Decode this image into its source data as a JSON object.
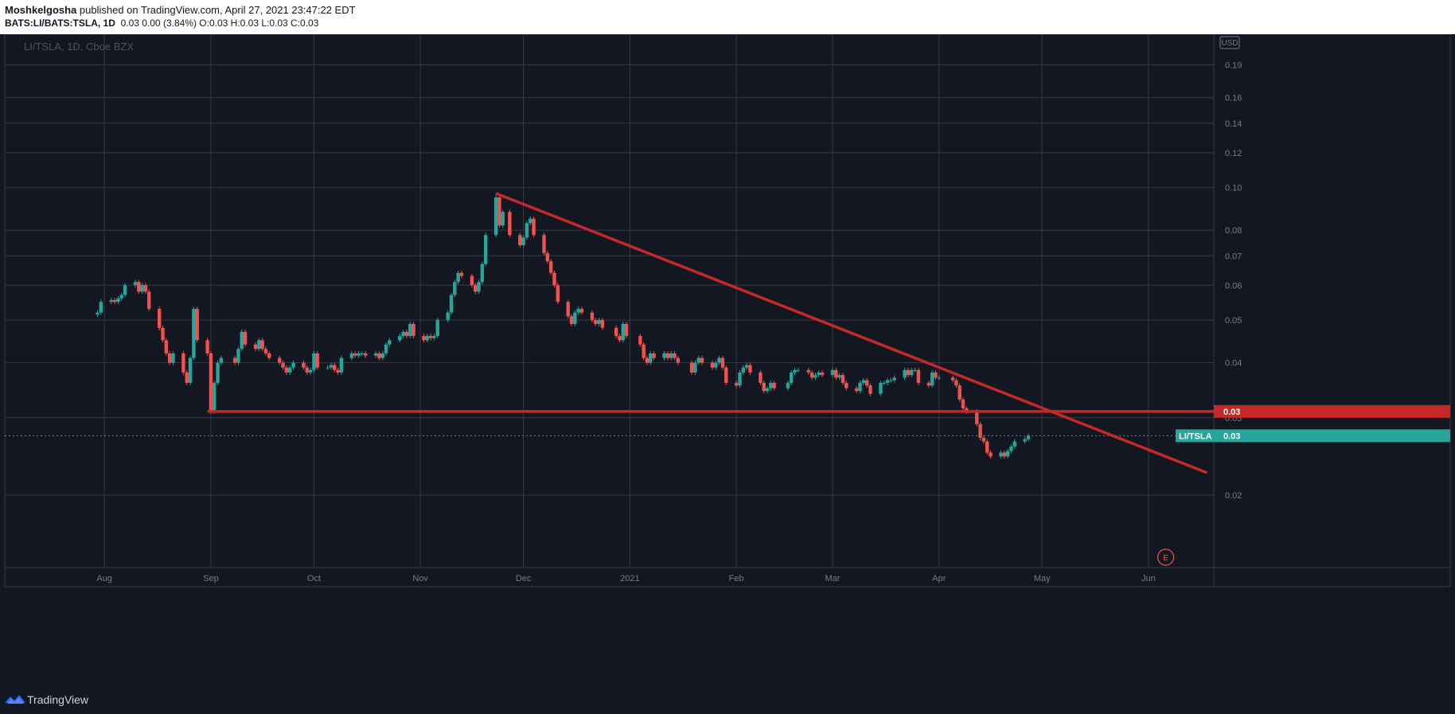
{
  "header": {
    "author": "Moshkelgosha",
    "published": " published on TradingView.com, April 27, 2021 23:47:22 EDT",
    "symbol_line": "BATS:LI/BATS:TSLA, 1D",
    "values_line": "0.03 0.00 (3.84%) O:0.03 H:0.03 L:0.03 C:0.03"
  },
  "chart_label": "LI/TSLA, 1D, Cboe BZX",
  "currency": "USD",
  "footer": {
    "brand": "TradingView"
  },
  "colors": {
    "background": "#131722",
    "up": "#26a69a",
    "down": "#ef5350",
    "trendline": "#c62828",
    "grid": "#363a45",
    "text": "#787b86"
  },
  "chart_data": {
    "type": "candlestick",
    "title": "LI/TSLA, 1D, Cboe BZX",
    "y_scale": "log",
    "ylim": [
      0.0137,
      0.223
    ],
    "xlim": [
      "2020-07-03",
      "2021-06-20"
    ],
    "y_ticks": [
      "0.19",
      "0.16",
      "0.14",
      "0.12",
      "0.10",
      "0.08",
      "0.07",
      "0.06",
      "0.05",
      "0.04",
      "0.03",
      "0.02"
    ],
    "x_ticks": [
      {
        "label": "Aug",
        "date": "2020-08-01"
      },
      {
        "label": "Sep",
        "date": "2020-09-01"
      },
      {
        "label": "Oct",
        "date": "2020-10-01"
      },
      {
        "label": "Nov",
        "date": "2020-11-01"
      },
      {
        "label": "Dec",
        "date": "2020-12-01"
      },
      {
        "label": "2021",
        "date": "2021-01-01"
      },
      {
        "label": "Feb",
        "date": "2021-02-01"
      },
      {
        "label": "Mar",
        "date": "2021-03-01"
      },
      {
        "label": "Apr",
        "date": "2021-04-01"
      },
      {
        "label": "May",
        "date": "2021-05-01"
      },
      {
        "label": "Jun",
        "date": "2021-06-01"
      }
    ],
    "close_series": [
      [
        "2020-07-30",
        0.052
      ],
      [
        "2020-07-31",
        0.055
      ],
      [
        "2020-08-03",
        0.0555
      ],
      [
        "2020-08-04",
        0.055
      ],
      [
        "2020-08-05",
        0.056
      ],
      [
        "2020-08-06",
        0.057
      ],
      [
        "2020-08-07",
        0.06
      ],
      [
        "2020-08-10",
        0.061
      ],
      [
        "2020-08-11",
        0.058
      ],
      [
        "2020-08-12",
        0.06
      ],
      [
        "2020-08-13",
        0.058
      ],
      [
        "2020-08-14",
        0.053
      ],
      [
        "2020-08-17",
        0.048
      ],
      [
        "2020-08-18",
        0.045
      ],
      [
        "2020-08-19",
        0.042
      ],
      [
        "2020-08-20",
        0.04
      ],
      [
        "2020-08-21",
        0.042
      ],
      [
        "2020-08-24",
        0.038
      ],
      [
        "2020-08-25",
        0.036
      ],
      [
        "2020-08-26",
        0.041
      ],
      [
        "2020-08-27",
        0.053
      ],
      [
        "2020-08-28",
        0.045
      ],
      [
        "2020-08-31",
        0.042
      ],
      [
        "2020-09-01",
        0.031
      ],
      [
        "2020-09-02",
        0.036
      ],
      [
        "2020-09-03",
        0.04
      ],
      [
        "2020-09-04",
        0.041
      ],
      [
        "2020-09-08",
        0.04
      ],
      [
        "2020-09-09",
        0.043
      ],
      [
        "2020-09-10",
        0.047
      ],
      [
        "2020-09-11",
        0.044
      ],
      [
        "2020-09-14",
        0.043
      ],
      [
        "2020-09-15",
        0.045
      ],
      [
        "2020-09-16",
        0.043
      ],
      [
        "2020-09-17",
        0.042
      ],
      [
        "2020-09-18",
        0.041
      ],
      [
        "2020-09-21",
        0.04
      ],
      [
        "2020-09-22",
        0.039
      ],
      [
        "2020-09-23",
        0.038
      ],
      [
        "2020-09-24",
        0.039
      ],
      [
        "2020-09-25",
        0.04
      ],
      [
        "2020-09-28",
        0.039
      ],
      [
        "2020-09-29",
        0.038
      ],
      [
        "2020-09-30",
        0.0385
      ],
      [
        "2020-10-01",
        0.042
      ],
      [
        "2020-10-02",
        0.039
      ],
      [
        "2020-10-05",
        0.039
      ],
      [
        "2020-10-06",
        0.0395
      ],
      [
        "2020-10-07",
        0.0385
      ],
      [
        "2020-10-08",
        0.038
      ],
      [
        "2020-10-09",
        0.041
      ],
      [
        "2020-10-12",
        0.042
      ],
      [
        "2020-10-13",
        0.0415
      ],
      [
        "2020-10-14",
        0.042
      ],
      [
        "2020-10-15",
        0.042
      ],
      [
        "2020-10-16",
        0.0415
      ],
      [
        "2020-10-19",
        0.042
      ],
      [
        "2020-10-20",
        0.041
      ],
      [
        "2020-10-21",
        0.042
      ],
      [
        "2020-10-22",
        0.044
      ],
      [
        "2020-10-23",
        0.045
      ],
      [
        "2020-10-26",
        0.046
      ],
      [
        "2020-10-27",
        0.047
      ],
      [
        "2020-10-28",
        0.046
      ],
      [
        "2020-10-29",
        0.049
      ],
      [
        "2020-10-30",
        0.046
      ],
      [
        "2020-11-02",
        0.045
      ],
      [
        "2020-11-03",
        0.046
      ],
      [
        "2020-11-04",
        0.0455
      ],
      [
        "2020-11-05",
        0.046
      ],
      [
        "2020-11-06",
        0.05
      ],
      [
        "2020-11-09",
        0.052
      ],
      [
        "2020-11-10",
        0.057
      ],
      [
        "2020-11-11",
        0.061
      ],
      [
        "2020-11-12",
        0.064
      ],
      [
        "2020-11-13",
        0.063
      ],
      [
        "2020-11-16",
        0.06
      ],
      [
        "2020-11-17",
        0.058
      ],
      [
        "2020-11-18",
        0.061
      ],
      [
        "2020-11-19",
        0.067
      ],
      [
        "2020-11-20",
        0.078
      ],
      [
        "2020-11-23",
        0.095
      ],
      [
        "2020-11-24",
        0.082
      ],
      [
        "2020-11-25",
        0.088
      ],
      [
        "2020-11-27",
        0.078
      ],
      [
        "2020-11-30",
        0.074
      ],
      [
        "2020-12-01",
        0.077
      ],
      [
        "2020-12-02",
        0.083
      ],
      [
        "2020-12-03",
        0.085
      ],
      [
        "2020-12-04",
        0.078
      ],
      [
        "2020-12-07",
        0.071
      ],
      [
        "2020-12-08",
        0.068
      ],
      [
        "2020-12-09",
        0.064
      ],
      [
        "2020-12-10",
        0.06
      ],
      [
        "2020-12-11",
        0.055
      ],
      [
        "2020-12-14",
        0.051
      ],
      [
        "2020-12-15",
        0.049
      ],
      [
        "2020-12-16",
        0.052
      ],
      [
        "2020-12-17",
        0.053
      ],
      [
        "2020-12-18",
        0.052
      ],
      [
        "2020-12-21",
        0.05
      ],
      [
        "2020-12-22",
        0.049
      ],
      [
        "2020-12-23",
        0.05
      ],
      [
        "2020-12-24",
        0.048
      ],
      [
        "2020-12-28",
        0.046
      ],
      [
        "2020-12-29",
        0.045
      ],
      [
        "2020-12-30",
        0.049
      ],
      [
        "2020-12-31",
        0.046
      ],
      [
        "2021-01-04",
        0.044
      ],
      [
        "2021-01-05",
        0.041
      ],
      [
        "2021-01-06",
        0.04
      ],
      [
        "2021-01-07",
        0.042
      ],
      [
        "2021-01-08",
        0.041
      ],
      [
        "2021-01-11",
        0.042
      ],
      [
        "2021-01-12",
        0.041
      ],
      [
        "2021-01-13",
        0.042
      ],
      [
        "2021-01-14",
        0.041
      ],
      [
        "2021-01-15",
        0.04
      ],
      [
        "2021-01-19",
        0.038
      ],
      [
        "2021-01-20",
        0.04
      ],
      [
        "2021-01-21",
        0.041
      ],
      [
        "2021-01-22",
        0.04
      ],
      [
        "2021-01-25",
        0.039
      ],
      [
        "2021-01-26",
        0.04
      ],
      [
        "2021-01-27",
        0.041
      ],
      [
        "2021-01-28",
        0.039
      ],
      [
        "2021-01-29",
        0.036
      ],
      [
        "2021-02-01",
        0.0355
      ],
      [
        "2021-02-02",
        0.038
      ],
      [
        "2021-02-03",
        0.039
      ],
      [
        "2021-02-04",
        0.0395
      ],
      [
        "2021-02-05",
        0.038
      ],
      [
        "2021-02-08",
        0.036
      ],
      [
        "2021-02-09",
        0.0345
      ],
      [
        "2021-02-10",
        0.035
      ],
      [
        "2021-02-11",
        0.036
      ],
      [
        "2021-02-12",
        0.035
      ],
      [
        "2021-02-16",
        0.036
      ],
      [
        "2021-02-17",
        0.038
      ],
      [
        "2021-02-18",
        0.0385
      ],
      [
        "2021-02-19",
        0.0385
      ],
      [
        "2021-02-22",
        0.038
      ],
      [
        "2021-02-23",
        0.037
      ],
      [
        "2021-02-24",
        0.0375
      ],
      [
        "2021-02-25",
        0.038
      ],
      [
        "2021-02-26",
        0.0375
      ],
      [
        "2021-03-01",
        0.0385
      ],
      [
        "2021-03-02",
        0.037
      ],
      [
        "2021-03-03",
        0.0375
      ],
      [
        "2021-03-04",
        0.036
      ],
      [
        "2021-03-05",
        0.035
      ],
      [
        "2021-03-08",
        0.0345
      ],
      [
        "2021-03-09",
        0.036
      ],
      [
        "2021-03-10",
        0.0365
      ],
      [
        "2021-03-11",
        0.0355
      ],
      [
        "2021-03-12",
        0.034
      ],
      [
        "2021-03-15",
        0.036
      ],
      [
        "2021-03-16",
        0.036
      ],
      [
        "2021-03-17",
        0.0365
      ],
      [
        "2021-03-18",
        0.0365
      ],
      [
        "2021-03-19",
        0.037
      ],
      [
        "2021-03-22",
        0.0385
      ],
      [
        "2021-03-23",
        0.0375
      ],
      [
        "2021-03-24",
        0.0385
      ],
      [
        "2021-03-25",
        0.0385
      ],
      [
        "2021-03-26",
        0.036
      ],
      [
        "2021-03-29",
        0.0355
      ],
      [
        "2021-03-30",
        0.038
      ],
      [
        "2021-03-31",
        0.037
      ],
      [
        "2021-04-01",
        0.037
      ],
      [
        "2021-04-05",
        0.0365
      ],
      [
        "2021-04-06",
        0.0355
      ],
      [
        "2021-04-07",
        0.033
      ],
      [
        "2021-04-08",
        0.0315
      ],
      [
        "2021-04-09",
        0.031
      ],
      [
        "2021-04-12",
        0.029
      ],
      [
        "2021-04-13",
        0.027
      ],
      [
        "2021-04-14",
        0.0265
      ],
      [
        "2021-04-15",
        0.025
      ],
      [
        "2021-04-16",
        0.0245
      ],
      [
        "2021-04-19",
        0.025
      ],
      [
        "2021-04-20",
        0.0245
      ],
      [
        "2021-04-21",
        0.0252
      ],
      [
        "2021-04-22",
        0.0258
      ],
      [
        "2021-04-23",
        0.0265
      ],
      [
        "2021-04-26",
        0.0268
      ],
      [
        "2021-04-27",
        0.0273
      ]
    ],
    "trendlines": [
      {
        "name": "descending-trendline",
        "from": [
          "2020-11-23",
          0.097
        ],
        "to": [
          "2021-06-18",
          0.0225
        ]
      },
      {
        "name": "horizontal-support",
        "from": [
          "2020-08-31",
          0.031
        ],
        "to": [
          "2021-06-20",
          0.031
        ]
      }
    ],
    "last_value_line": 0.0273,
    "price_labels": [
      {
        "text": "0.03",
        "value": 0.031,
        "color": "#c62828"
      },
      {
        "text": "LI/TSLA",
        "extra": "0.03",
        "value": 0.0273,
        "color": "#26a69a"
      }
    ],
    "event_marker": {
      "label": "E",
      "date": "2021-06-06"
    }
  }
}
